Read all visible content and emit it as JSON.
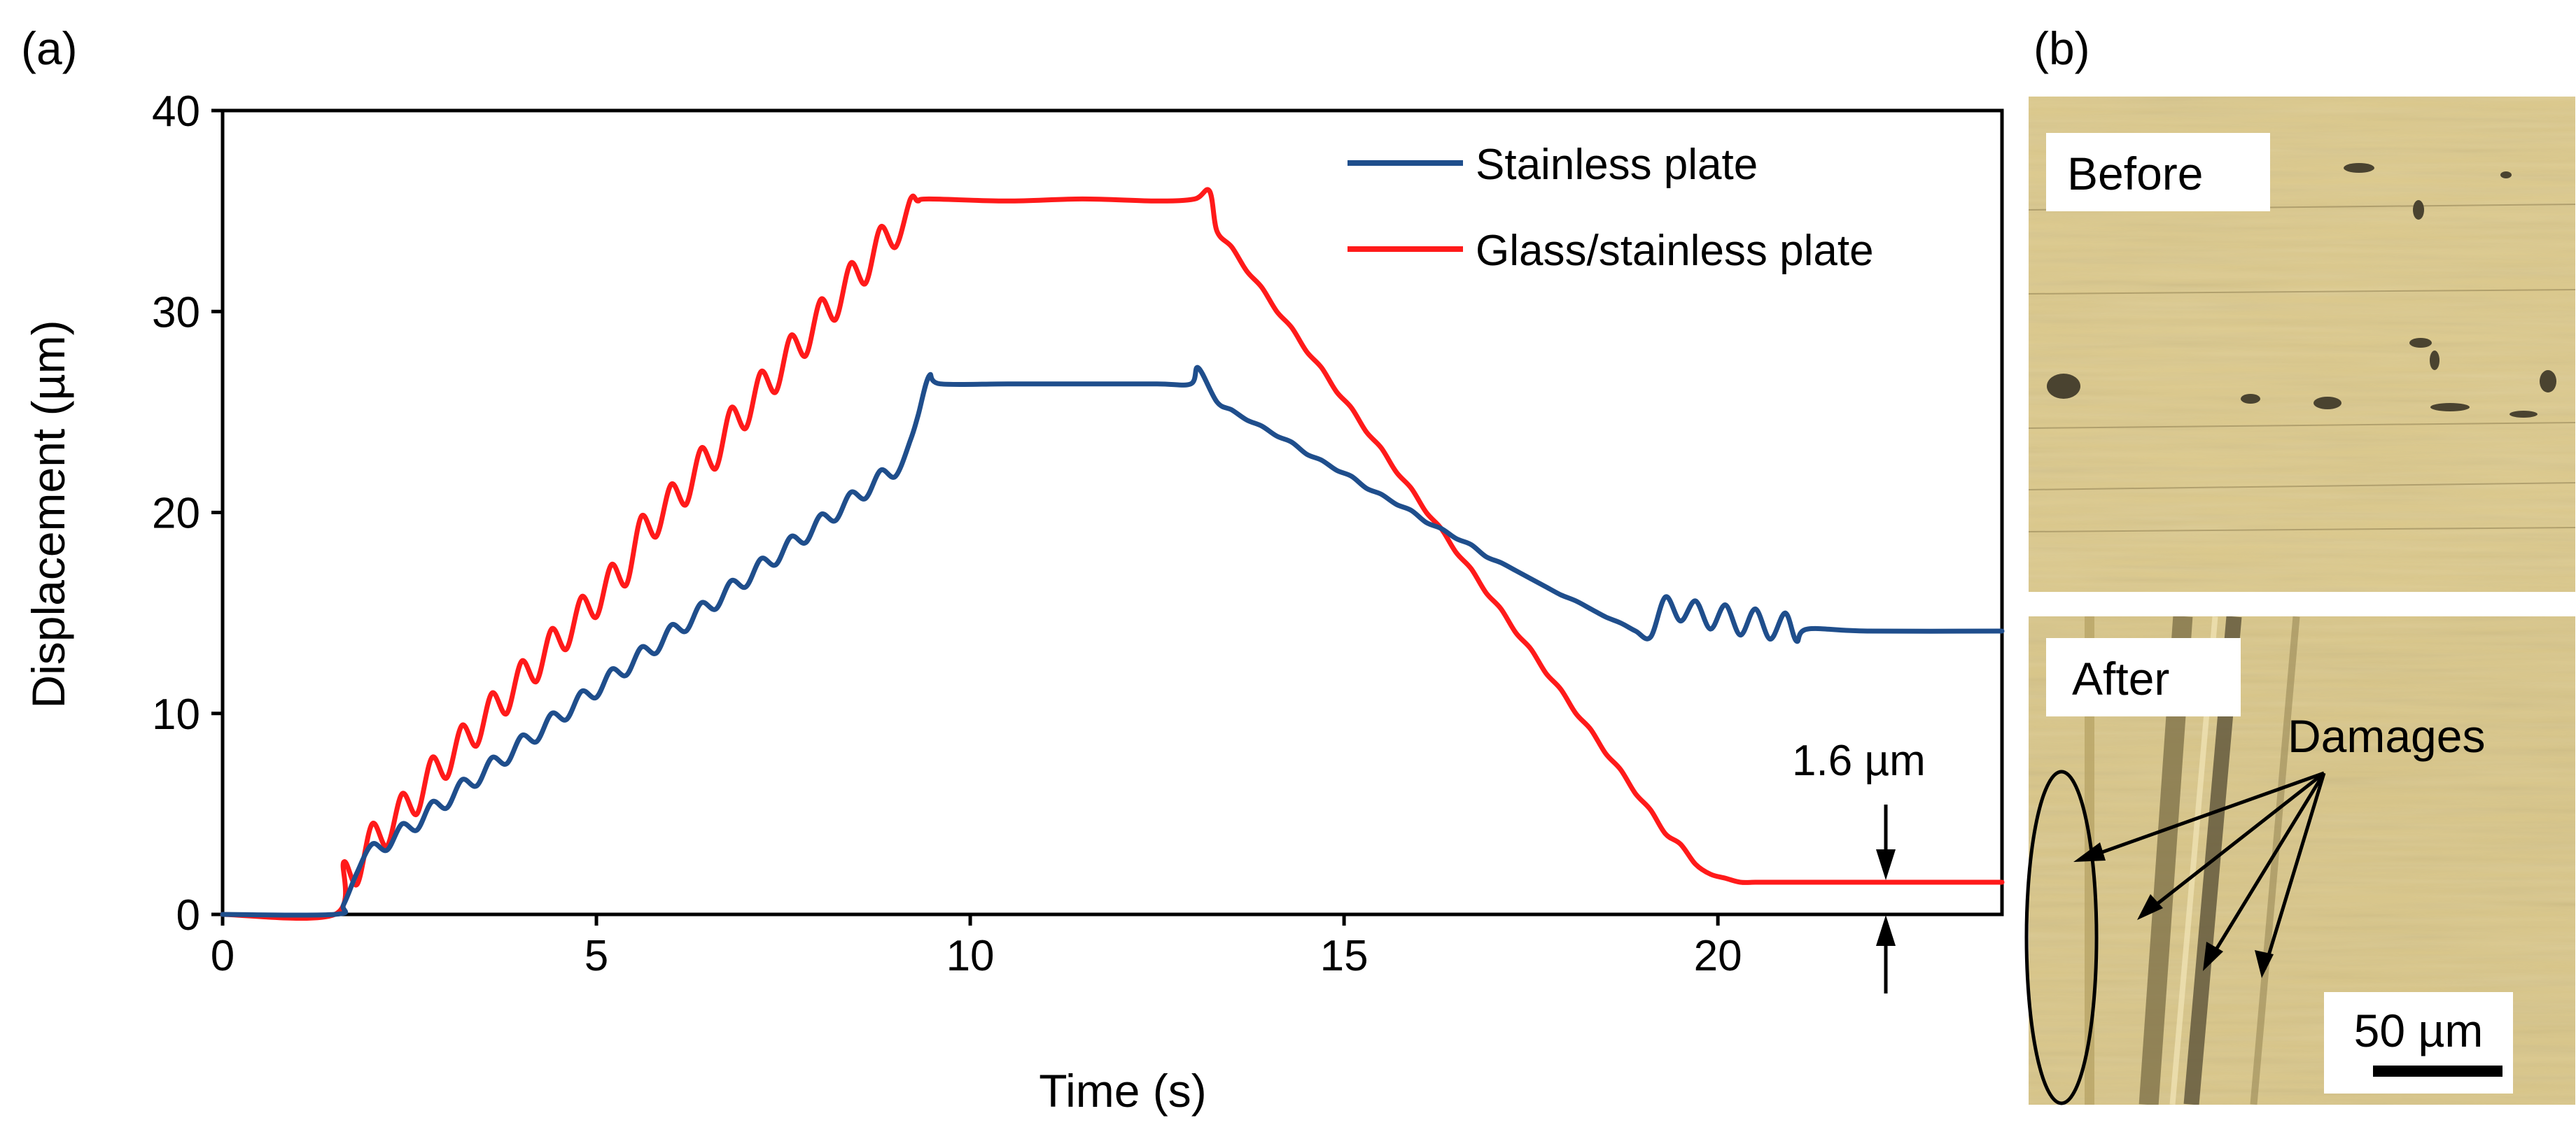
{
  "chart_data": {
    "type": "line",
    "panel_label": "(a)",
    "xlabel": "Time (s)",
    "ylabel": "Displacement (µm)",
    "xlim": [
      0,
      23.8
    ],
    "ylim": [
      0,
      40
    ],
    "xticks": [
      "0",
      "5",
      "10",
      "15",
      "20"
    ],
    "yticks": [
      "0",
      "10",
      "20",
      "30",
      "40"
    ],
    "series": [
      {
        "name": "Stainless plate",
        "color": "#1f4e8c",
        "x": [
          0,
          1.5,
          1.62,
          1.8,
          2.0,
          2.2,
          2.4,
          2.6,
          2.8,
          3.0,
          3.2,
          3.4,
          3.6,
          3.8,
          4.0,
          4.2,
          4.4,
          4.6,
          4.8,
          5.0,
          5.2,
          5.4,
          5.6,
          5.8,
          6.0,
          6.2,
          6.4,
          6.6,
          6.8,
          7.0,
          7.2,
          7.4,
          7.6,
          7.8,
          8.0,
          8.2,
          8.4,
          8.6,
          8.8,
          9.0,
          9.2,
          9.3,
          9.45,
          9.6,
          10.5,
          11.5,
          12.5,
          12.95,
          13.05,
          13.3,
          13.5,
          13.7,
          13.9,
          14.1,
          14.3,
          14.5,
          14.7,
          14.9,
          15.1,
          15.3,
          15.5,
          15.7,
          15.9,
          16.1,
          16.3,
          16.5,
          16.7,
          16.9,
          17.1,
          17.3,
          17.5,
          17.7,
          17.9,
          18.1,
          18.3,
          18.5,
          18.7,
          18.9,
          19.1,
          19.3,
          19.5,
          19.7,
          19.9,
          20.1,
          20.3,
          20.5,
          20.7,
          20.9,
          21.05,
          21.2,
          22.0,
          23.8
        ],
        "y": [
          0,
          0,
          0.5,
          2.1,
          3.5,
          3.2,
          4.5,
          4.2,
          5.6,
          5.3,
          6.7,
          6.4,
          7.8,
          7.5,
          8.9,
          8.6,
          10.0,
          9.7,
          11.1,
          10.8,
          12.2,
          11.9,
          13.3,
          13.0,
          14.4,
          14.1,
          15.5,
          15.2,
          16.6,
          16.3,
          17.7,
          17.4,
          18.8,
          18.5,
          19.9,
          19.6,
          21.0,
          20.7,
          22.1,
          21.8,
          23.6,
          24.8,
          26.8,
          26.4,
          26.4,
          26.4,
          26.4,
          26.4,
          27.2,
          25.5,
          25.1,
          24.6,
          24.3,
          23.8,
          23.5,
          22.9,
          22.6,
          22.1,
          21.8,
          21.2,
          20.9,
          20.4,
          20.1,
          19.5,
          19.2,
          18.7,
          18.4,
          17.8,
          17.5,
          17.1,
          16.7,
          16.3,
          15.9,
          15.6,
          15.2,
          14.8,
          14.5,
          14.1,
          13.8,
          15.8,
          14.6,
          15.6,
          14.2,
          15.4,
          13.9,
          15.2,
          13.7,
          15.0,
          13.6,
          14.2,
          14.1,
          14.1
        ]
      },
      {
        "name": "Glass/stainless plate",
        "color": "#ff1a1a",
        "x": [
          0,
          1.5,
          1.62,
          1.8,
          2.0,
          2.2,
          2.4,
          2.6,
          2.8,
          3.0,
          3.2,
          3.4,
          3.6,
          3.8,
          4.0,
          4.2,
          4.4,
          4.6,
          4.8,
          5.0,
          5.2,
          5.4,
          5.6,
          5.8,
          6.0,
          6.2,
          6.4,
          6.6,
          6.8,
          7.0,
          7.2,
          7.4,
          7.6,
          7.8,
          8.0,
          8.2,
          8.4,
          8.6,
          8.8,
          9.0,
          9.2,
          9.3,
          9.45,
          10.5,
          11.5,
          12.5,
          13.0,
          13.2,
          13.3,
          13.5,
          13.7,
          13.9,
          14.1,
          14.3,
          14.5,
          14.7,
          14.9,
          15.1,
          15.3,
          15.5,
          15.7,
          15.9,
          16.1,
          16.3,
          16.5,
          16.7,
          16.9,
          17.1,
          17.3,
          17.5,
          17.7,
          17.9,
          18.1,
          18.3,
          18.5,
          18.7,
          18.9,
          19.1,
          19.3,
          19.5,
          19.7,
          19.9,
          20.1,
          20.3,
          20.5,
          20.7,
          20.9,
          21.05,
          21.2,
          22.0,
          23.8
        ],
        "y": [
          0,
          0,
          2.6,
          1.5,
          4.5,
          3.4,
          6.0,
          5.0,
          7.8,
          6.8,
          9.4,
          8.4,
          11.0,
          10.0,
          12.6,
          11.6,
          14.2,
          13.2,
          15.8,
          14.8,
          17.4,
          16.4,
          19.8,
          18.8,
          21.4,
          20.4,
          23.2,
          22.2,
          25.2,
          24.2,
          27.0,
          26.0,
          28.8,
          27.8,
          30.6,
          29.6,
          32.4,
          31.4,
          34.2,
          33.2,
          35.6,
          35.5,
          35.6,
          35.5,
          35.6,
          35.5,
          35.6,
          36.0,
          34.0,
          33.2,
          32.0,
          31.2,
          30.0,
          29.2,
          28.0,
          27.2,
          26.0,
          25.2,
          24.0,
          23.2,
          22.0,
          21.2,
          20.0,
          19.2,
          18.0,
          17.2,
          16.0,
          15.2,
          14.0,
          13.2,
          12.0,
          11.2,
          10.0,
          9.2,
          8.0,
          7.2,
          6.0,
          5.2,
          4.0,
          3.5,
          2.5,
          2.0,
          1.8,
          1.6,
          1.6,
          1.6,
          1.6,
          1.6,
          1.6,
          1.6,
          1.6
        ]
      }
    ],
    "legend_position": "top-right",
    "annotation": {
      "text": "1.6 µm",
      "x": 22.2,
      "y_low": 0,
      "y_high": 1.6
    }
  },
  "panel_b": {
    "label": "(b)",
    "before_label": "Before",
    "after_label": "After",
    "damages_label": "Damages",
    "scale_label": "50 µm"
  },
  "colors": {
    "micrograph_base": "#dcc98c",
    "micrograph_dark": "#5c5338",
    "border": "#000000"
  }
}
